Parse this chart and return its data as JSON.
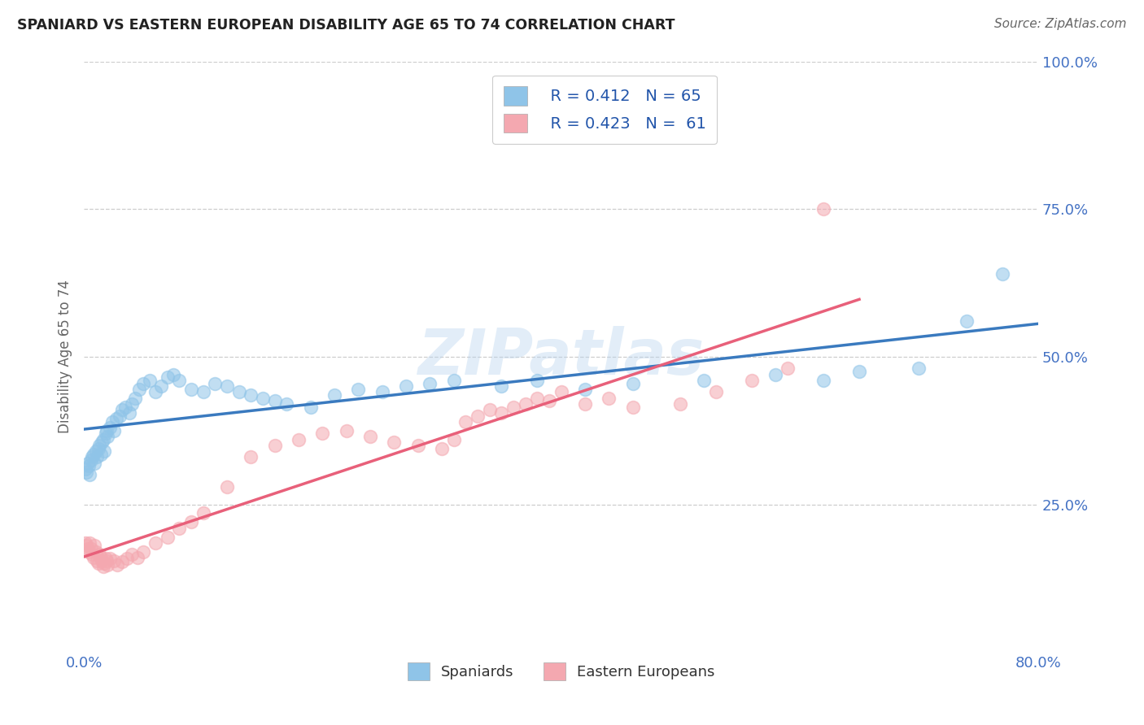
{
  "title": "SPANIARD VS EASTERN EUROPEAN DISABILITY AGE 65 TO 74 CORRELATION CHART",
  "source": "Source: ZipAtlas.com",
  "ylabel": "Disability Age 65 to 74",
  "xlim": [
    0.0,
    0.8
  ],
  "ylim": [
    0.0,
    1.0
  ],
  "xticks": [
    0.0,
    0.8
  ],
  "xticklabels": [
    "0.0%",
    "80.0%"
  ],
  "yticks": [
    0.25,
    0.5,
    0.75,
    1.0
  ],
  "yticklabels": [
    "25.0%",
    "50.0%",
    "75.0%",
    "100.0%"
  ],
  "grid_color": "#c8c8c8",
  "background_color": "#ffffff",
  "spaniards_color": "#8fc4e8",
  "eastern_europeans_color": "#f4a8b0",
  "spaniards_line_color": "#3a7abf",
  "eastern_europeans_line_color": "#e8607a",
  "legend_r1": "R = 0.412",
  "legend_n1": "N = 65",
  "legend_r2": "R = 0.423",
  "legend_n2": "N =  61",
  "watermark": "ZIPatlas",
  "spaniards_x": [
    0.001,
    0.002,
    0.003,
    0.004,
    0.005,
    0.006,
    0.007,
    0.008,
    0.009,
    0.01,
    0.011,
    0.012,
    0.013,
    0.014,
    0.015,
    0.016,
    0.017,
    0.018,
    0.019,
    0.02,
    0.022,
    0.024,
    0.025,
    0.027,
    0.03,
    0.032,
    0.035,
    0.038,
    0.04,
    0.043,
    0.046,
    0.05,
    0.055,
    0.06,
    0.065,
    0.07,
    0.075,
    0.08,
    0.09,
    0.1,
    0.11,
    0.12,
    0.13,
    0.14,
    0.15,
    0.16,
    0.17,
    0.19,
    0.21,
    0.23,
    0.25,
    0.27,
    0.29,
    0.31,
    0.35,
    0.38,
    0.42,
    0.46,
    0.52,
    0.58,
    0.62,
    0.65,
    0.7,
    0.74,
    0.77
  ],
  "spaniards_y": [
    0.31,
    0.305,
    0.32,
    0.315,
    0.3,
    0.325,
    0.33,
    0.335,
    0.32,
    0.34,
    0.33,
    0.345,
    0.35,
    0.335,
    0.355,
    0.36,
    0.34,
    0.37,
    0.375,
    0.365,
    0.38,
    0.39,
    0.375,
    0.395,
    0.4,
    0.41,
    0.415,
    0.405,
    0.42,
    0.43,
    0.445,
    0.455,
    0.46,
    0.44,
    0.45,
    0.465,
    0.47,
    0.46,
    0.445,
    0.44,
    0.455,
    0.45,
    0.44,
    0.435,
    0.43,
    0.425,
    0.42,
    0.415,
    0.435,
    0.445,
    0.44,
    0.45,
    0.455,
    0.46,
    0.45,
    0.46,
    0.445,
    0.455,
    0.46,
    0.47,
    0.46,
    0.475,
    0.48,
    0.56,
    0.64
  ],
  "eastern_europeans_x": [
    0.001,
    0.002,
    0.003,
    0.004,
    0.005,
    0.006,
    0.007,
    0.008,
    0.009,
    0.01,
    0.011,
    0.012,
    0.013,
    0.014,
    0.015,
    0.016,
    0.017,
    0.018,
    0.019,
    0.02,
    0.022,
    0.025,
    0.028,
    0.032,
    0.036,
    0.04,
    0.045,
    0.05,
    0.06,
    0.07,
    0.08,
    0.09,
    0.1,
    0.12,
    0.14,
    0.16,
    0.18,
    0.2,
    0.22,
    0.24,
    0.26,
    0.28,
    0.3,
    0.31,
    0.32,
    0.33,
    0.34,
    0.35,
    0.36,
    0.37,
    0.38,
    0.39,
    0.4,
    0.42,
    0.44,
    0.46,
    0.5,
    0.53,
    0.56,
    0.59,
    0.62
  ],
  "eastern_europeans_y": [
    0.185,
    0.18,
    0.175,
    0.17,
    0.185,
    0.175,
    0.165,
    0.16,
    0.18,
    0.17,
    0.155,
    0.15,
    0.165,
    0.16,
    0.155,
    0.145,
    0.15,
    0.158,
    0.155,
    0.148,
    0.158,
    0.155,
    0.148,
    0.153,
    0.158,
    0.165,
    0.16,
    0.17,
    0.185,
    0.195,
    0.21,
    0.22,
    0.235,
    0.28,
    0.33,
    0.35,
    0.36,
    0.37,
    0.375,
    0.365,
    0.355,
    0.35,
    0.345,
    0.36,
    0.39,
    0.4,
    0.41,
    0.405,
    0.415,
    0.42,
    0.43,
    0.425,
    0.44,
    0.42,
    0.43,
    0.415,
    0.42,
    0.44,
    0.46,
    0.48,
    0.75
  ],
  "spaniards_label": "Spaniards",
  "eastern_europeans_label": "Eastern Europeans"
}
